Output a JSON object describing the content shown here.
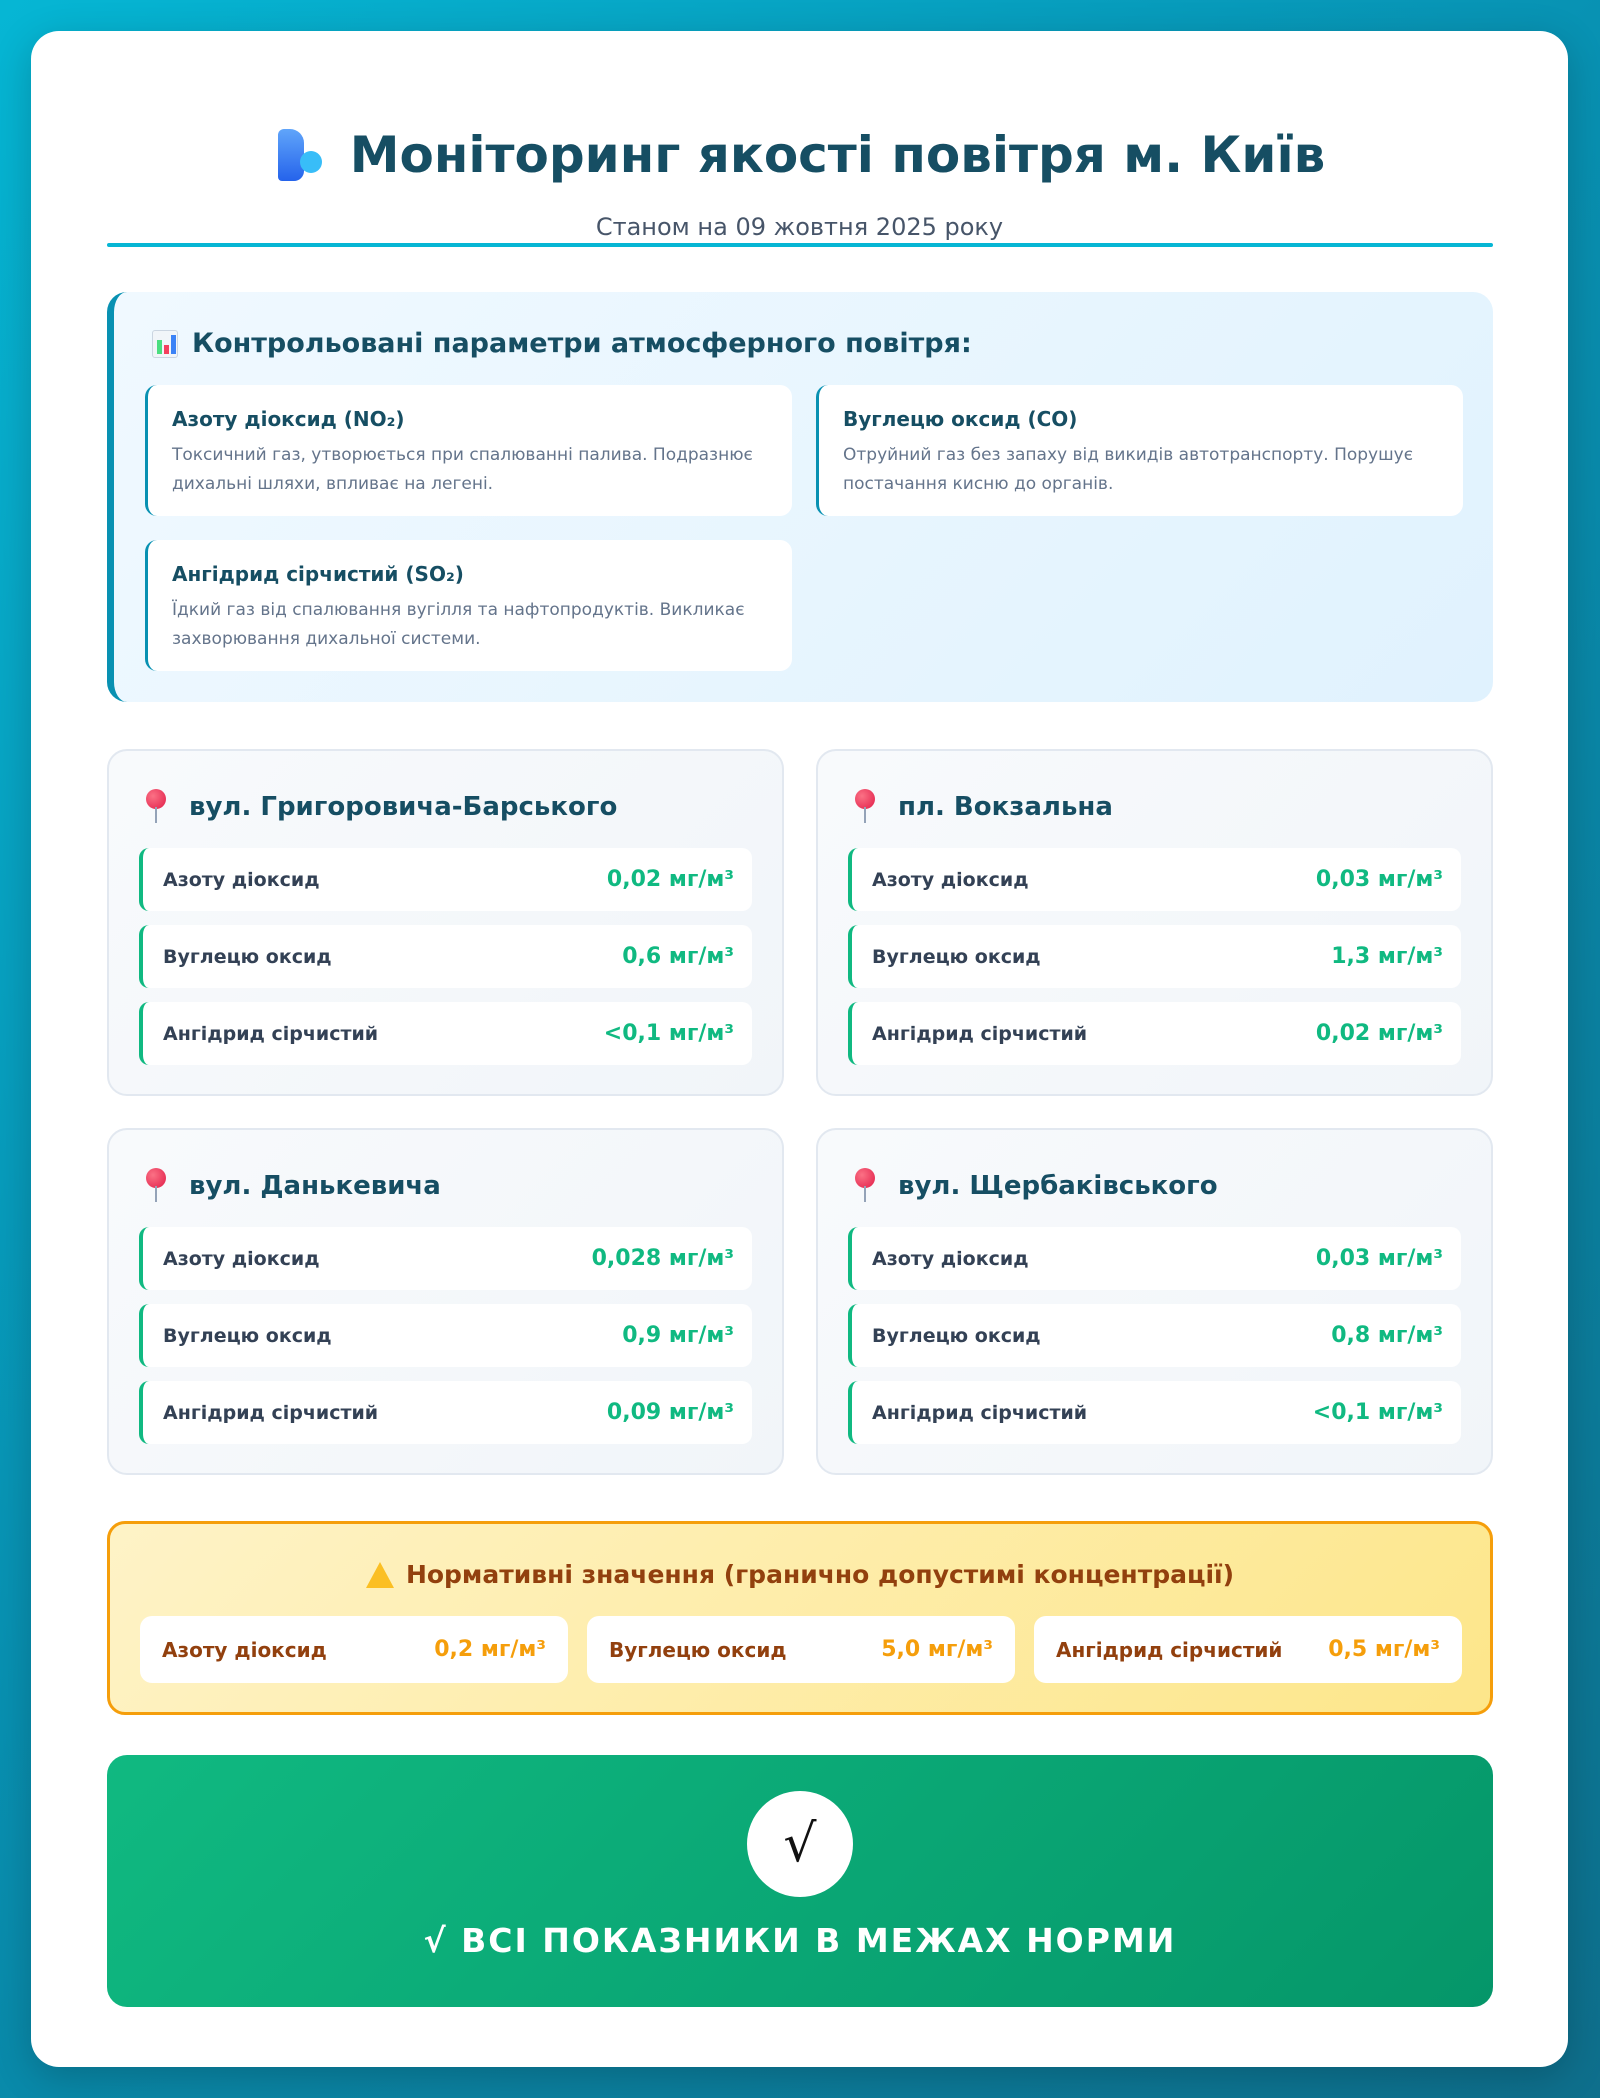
{
  "header": {
    "title": "Моніторинг якості повітря м. Київ",
    "subtitle": "Станом на 09 жовтня 2025 року",
    "logo_icon": "face-exhaling-icon"
  },
  "parameters": {
    "heading": "Контрольовані параметри атмосферного повітря:",
    "icon": "bar-chart-icon",
    "items": [
      {
        "title": "Азоту діоксид (NO₂)",
        "description": "Токсичний газ, утворюється при спалюванні палива. Подразнює дихальні шляхи, впливає на легені."
      },
      {
        "title": "Вуглецю оксид (CO)",
        "description": "Отруйний газ без запаху від викидів автотранспорту. Порушує постачання кисню до органів."
      },
      {
        "title": "Ангідрид сірчистий (SO₂)",
        "description": "Їдкий газ від спалювання вугілля та нафтопродуктів. Викликає захворювання дихальної системи."
      }
    ]
  },
  "stations": [
    {
      "name": "вул. Григоровича-Барського",
      "readings": [
        {
          "label": "Азоту діоксид",
          "value": "0,02 мг/м³"
        },
        {
          "label": "Вуглецю оксид",
          "value": "0,6 мг/м³"
        },
        {
          "label": "Ангідрид сірчистий",
          "value": "<0,1 мг/м³"
        }
      ]
    },
    {
      "name": "пл. Вокзальна",
      "readings": [
        {
          "label": "Азоту діоксид",
          "value": "0,03 мг/м³"
        },
        {
          "label": "Вуглецю оксид",
          "value": "1,3 мг/м³"
        },
        {
          "label": "Ангідрид сірчистий",
          "value": "0,02 мг/м³"
        }
      ]
    },
    {
      "name": "вул. Данькевича",
      "readings": [
        {
          "label": "Азоту діоксид",
          "value": "0,028 мг/м³"
        },
        {
          "label": "Вуглецю оксид",
          "value": "0,9 мг/м³"
        },
        {
          "label": "Ангідрид сірчистий",
          "value": "0,09 мг/м³"
        }
      ]
    },
    {
      "name": "вул. Щербаківського",
      "readings": [
        {
          "label": "Азоту діоксид",
          "value": "0,03 мг/м³"
        },
        {
          "label": "Вуглецю оксид",
          "value": "0,8 мг/м³"
        },
        {
          "label": "Ангідрид сірчистий",
          "value": "<0,1 мг/м³"
        }
      ]
    }
  ],
  "norms": {
    "heading": "Нормативні значення (гранично допустимі концентрації)",
    "icon": "warning-icon",
    "items": [
      {
        "label": "Азоту діоксид",
        "value": "0,2 мг/м³"
      },
      {
        "label": "Вуглецю оксид",
        "value": "5,0 мг/м³"
      },
      {
        "label": "Ангідрид сірчистий",
        "value": "0,5 мг/м³"
      }
    ]
  },
  "status": {
    "icon": "√",
    "text": "√ ВСІ ПОКАЗНИКИ В МЕЖАХ НОРМИ"
  },
  "colors": {
    "accent": "#06b6d4",
    "ok": "#10b981",
    "warning": "#f59e0b",
    "heading": "#164e63"
  }
}
